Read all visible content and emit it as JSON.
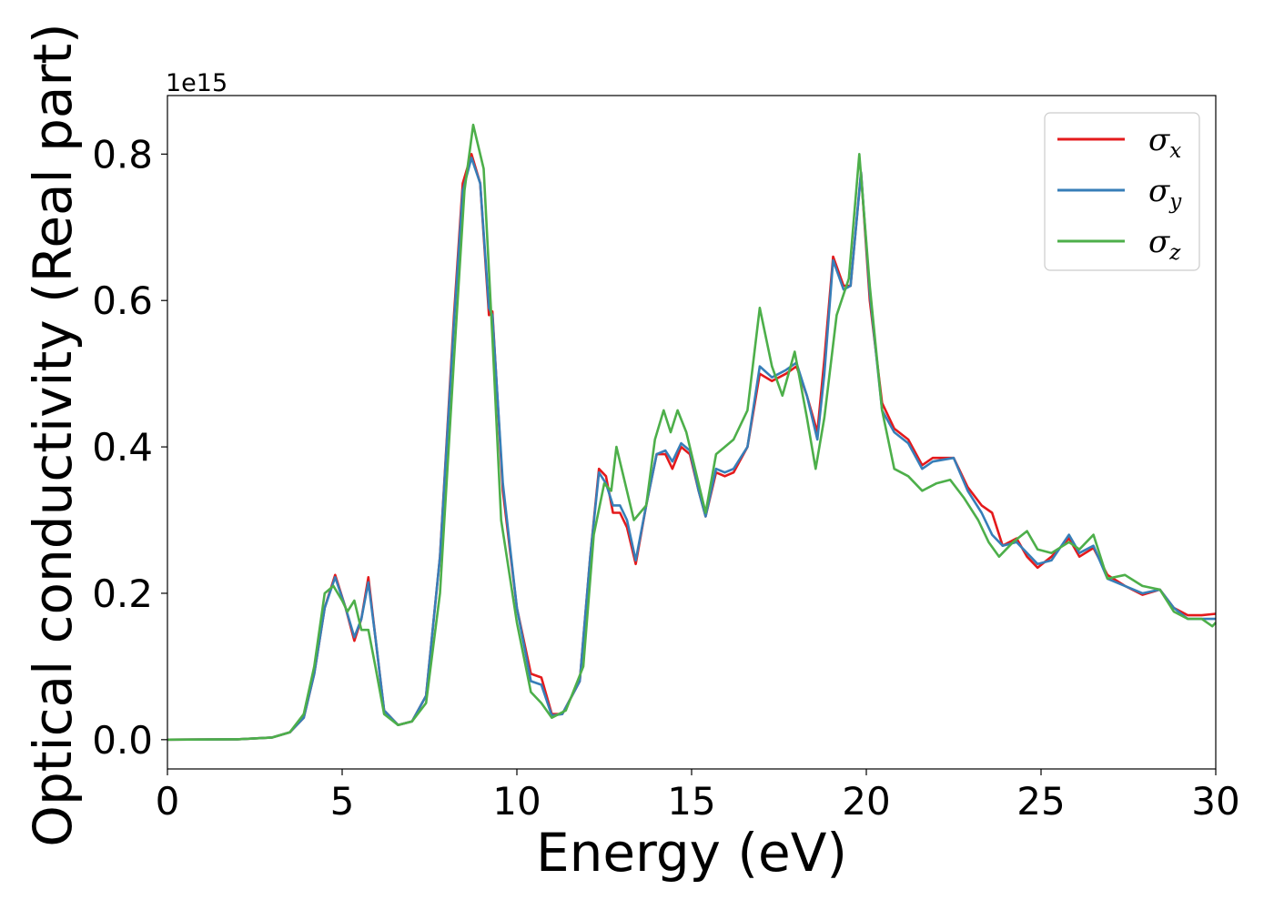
{
  "chart_data": {
    "type": "line",
    "xlabel": "Energy (eV)",
    "ylabel": "Optical conductivity (Real part)",
    "y_offset_label": "1e15",
    "xlim": [
      0,
      30
    ],
    "ylim": [
      -0.04,
      0.88
    ],
    "x_ticks": [
      0,
      5,
      10,
      15,
      20,
      25,
      30
    ],
    "x_tick_labels": [
      "0",
      "5",
      "10",
      "15",
      "20",
      "25",
      "30"
    ],
    "y_ticks": [
      0.0,
      0.2,
      0.4,
      0.6,
      0.8
    ],
    "y_tick_labels": [
      "0.0",
      "0.2",
      "0.4",
      "0.6",
      "0.8"
    ],
    "grid": false,
    "legend_position": "top-right",
    "series": [
      {
        "name": "σx",
        "legend_base": "σ",
        "legend_sub": "x",
        "color": "#e41a1c",
        "points": [
          [
            0,
            0
          ],
          [
            2,
            0.0005
          ],
          [
            3,
            0.003
          ],
          [
            3.5,
            0.01
          ],
          [
            3.9,
            0.03
          ],
          [
            4.2,
            0.09
          ],
          [
            4.5,
            0.18
          ],
          [
            4.8,
            0.225
          ],
          [
            5.1,
            0.18
          ],
          [
            5.35,
            0.135
          ],
          [
            5.55,
            0.165
          ],
          [
            5.75,
            0.222
          ],
          [
            5.95,
            0.14
          ],
          [
            6.2,
            0.04
          ],
          [
            6.6,
            0.02
          ],
          [
            7.0,
            0.025
          ],
          [
            7.4,
            0.06
          ],
          [
            7.8,
            0.25
          ],
          [
            8.2,
            0.58
          ],
          [
            8.45,
            0.76
          ],
          [
            8.7,
            0.8
          ],
          [
            8.95,
            0.76
          ],
          [
            9.2,
            0.58
          ],
          [
            9.3,
            0.585
          ],
          [
            9.6,
            0.34
          ],
          [
            10.0,
            0.18
          ],
          [
            10.4,
            0.09
          ],
          [
            10.7,
            0.085
          ],
          [
            11.0,
            0.035
          ],
          [
            11.3,
            0.035
          ],
          [
            11.8,
            0.08
          ],
          [
            12.1,
            0.25
          ],
          [
            12.35,
            0.37
          ],
          [
            12.55,
            0.36
          ],
          [
            12.75,
            0.31
          ],
          [
            12.95,
            0.31
          ],
          [
            13.15,
            0.29
          ],
          [
            13.4,
            0.24
          ],
          [
            13.7,
            0.32
          ],
          [
            14.0,
            0.39
          ],
          [
            14.25,
            0.39
          ],
          [
            14.45,
            0.37
          ],
          [
            14.7,
            0.4
          ],
          [
            14.95,
            0.39
          ],
          [
            15.2,
            0.34
          ],
          [
            15.4,
            0.305
          ],
          [
            15.7,
            0.365
          ],
          [
            15.95,
            0.36
          ],
          [
            16.2,
            0.365
          ],
          [
            16.6,
            0.4
          ],
          [
            16.95,
            0.5
          ],
          [
            17.3,
            0.49
          ],
          [
            17.7,
            0.5
          ],
          [
            18.0,
            0.51
          ],
          [
            18.3,
            0.47
          ],
          [
            18.6,
            0.42
          ],
          [
            18.8,
            0.52
          ],
          [
            19.05,
            0.66
          ],
          [
            19.35,
            0.62
          ],
          [
            19.55,
            0.62
          ],
          [
            19.85,
            0.775
          ],
          [
            20.1,
            0.6
          ],
          [
            20.45,
            0.46
          ],
          [
            20.8,
            0.425
          ],
          [
            21.2,
            0.41
          ],
          [
            21.6,
            0.375
          ],
          [
            21.9,
            0.385
          ],
          [
            22.5,
            0.385
          ],
          [
            22.9,
            0.345
          ],
          [
            23.3,
            0.32
          ],
          [
            23.6,
            0.31
          ],
          [
            23.9,
            0.265
          ],
          [
            24.3,
            0.275
          ],
          [
            24.6,
            0.25
          ],
          [
            24.9,
            0.235
          ],
          [
            25.3,
            0.25
          ],
          [
            25.8,
            0.275
          ],
          [
            26.1,
            0.25
          ],
          [
            26.5,
            0.262
          ],
          [
            26.9,
            0.225
          ],
          [
            27.4,
            0.21
          ],
          [
            27.9,
            0.198
          ],
          [
            28.4,
            0.205
          ],
          [
            28.8,
            0.18
          ],
          [
            29.2,
            0.17
          ],
          [
            29.6,
            0.17
          ],
          [
            30,
            0.172
          ]
        ]
      },
      {
        "name": "σy",
        "legend_base": "σ",
        "legend_sub": "y",
        "color": "#377eb8",
        "points": [
          [
            0,
            0
          ],
          [
            2,
            0.0005
          ],
          [
            3,
            0.003
          ],
          [
            3.5,
            0.01
          ],
          [
            3.9,
            0.03
          ],
          [
            4.2,
            0.09
          ],
          [
            4.5,
            0.18
          ],
          [
            4.8,
            0.222
          ],
          [
            5.1,
            0.18
          ],
          [
            5.35,
            0.14
          ],
          [
            5.55,
            0.165
          ],
          [
            5.75,
            0.215
          ],
          [
            5.95,
            0.14
          ],
          [
            6.2,
            0.04
          ],
          [
            6.6,
            0.02
          ],
          [
            7.0,
            0.025
          ],
          [
            7.4,
            0.06
          ],
          [
            7.8,
            0.25
          ],
          [
            8.2,
            0.57
          ],
          [
            8.45,
            0.75
          ],
          [
            8.7,
            0.795
          ],
          [
            8.95,
            0.76
          ],
          [
            9.2,
            0.59
          ],
          [
            9.3,
            0.58
          ],
          [
            9.6,
            0.35
          ],
          [
            10.0,
            0.18
          ],
          [
            10.4,
            0.08
          ],
          [
            10.7,
            0.075
          ],
          [
            11.0,
            0.033
          ],
          [
            11.3,
            0.035
          ],
          [
            11.8,
            0.08
          ],
          [
            12.1,
            0.25
          ],
          [
            12.35,
            0.365
          ],
          [
            12.55,
            0.35
          ],
          [
            12.75,
            0.32
          ],
          [
            12.95,
            0.32
          ],
          [
            13.15,
            0.3
          ],
          [
            13.4,
            0.245
          ],
          [
            13.7,
            0.32
          ],
          [
            14.0,
            0.39
          ],
          [
            14.25,
            0.395
          ],
          [
            14.45,
            0.38
          ],
          [
            14.7,
            0.405
          ],
          [
            14.95,
            0.395
          ],
          [
            15.2,
            0.34
          ],
          [
            15.4,
            0.305
          ],
          [
            15.7,
            0.37
          ],
          [
            15.95,
            0.365
          ],
          [
            16.2,
            0.37
          ],
          [
            16.6,
            0.4
          ],
          [
            16.95,
            0.51
          ],
          [
            17.3,
            0.495
          ],
          [
            17.7,
            0.505
          ],
          [
            18.0,
            0.515
          ],
          [
            18.3,
            0.47
          ],
          [
            18.6,
            0.41
          ],
          [
            18.8,
            0.5
          ],
          [
            19.05,
            0.655
          ],
          [
            19.35,
            0.615
          ],
          [
            19.55,
            0.62
          ],
          [
            19.85,
            0.775
          ],
          [
            20.1,
            0.61
          ],
          [
            20.45,
            0.45
          ],
          [
            20.8,
            0.42
          ],
          [
            21.2,
            0.405
          ],
          [
            21.6,
            0.37
          ],
          [
            21.9,
            0.38
          ],
          [
            22.5,
            0.385
          ],
          [
            22.9,
            0.34
          ],
          [
            23.3,
            0.31
          ],
          [
            23.6,
            0.28
          ],
          [
            23.9,
            0.265
          ],
          [
            24.3,
            0.27
          ],
          [
            24.6,
            0.255
          ],
          [
            24.9,
            0.24
          ],
          [
            25.3,
            0.245
          ],
          [
            25.8,
            0.28
          ],
          [
            26.1,
            0.255
          ],
          [
            26.5,
            0.265
          ],
          [
            26.9,
            0.22
          ],
          [
            27.4,
            0.21
          ],
          [
            27.9,
            0.2
          ],
          [
            28.4,
            0.205
          ],
          [
            28.8,
            0.18
          ],
          [
            29.2,
            0.165
          ],
          [
            29.6,
            0.165
          ],
          [
            30,
            0.165
          ]
        ]
      },
      {
        "name": "σz",
        "legend_base": "σ",
        "legend_sub": "z",
        "color": "#4daf4a",
        "points": [
          [
            0,
            0
          ],
          [
            2,
            0.0005
          ],
          [
            3,
            0.003
          ],
          [
            3.5,
            0.01
          ],
          [
            3.9,
            0.035
          ],
          [
            4.2,
            0.1
          ],
          [
            4.5,
            0.2
          ],
          [
            4.75,
            0.21
          ],
          [
            5.0,
            0.19
          ],
          [
            5.15,
            0.175
          ],
          [
            5.35,
            0.19
          ],
          [
            5.55,
            0.15
          ],
          [
            5.75,
            0.15
          ],
          [
            5.95,
            0.1
          ],
          [
            6.2,
            0.035
          ],
          [
            6.6,
            0.02
          ],
          [
            7.0,
            0.025
          ],
          [
            7.4,
            0.05
          ],
          [
            7.8,
            0.2
          ],
          [
            8.2,
            0.52
          ],
          [
            8.5,
            0.75
          ],
          [
            8.75,
            0.84
          ],
          [
            9.05,
            0.78
          ],
          [
            9.3,
            0.55
          ],
          [
            9.55,
            0.3
          ],
          [
            10.0,
            0.16
          ],
          [
            10.4,
            0.065
          ],
          [
            10.7,
            0.05
          ],
          [
            11.0,
            0.03
          ],
          [
            11.4,
            0.04
          ],
          [
            11.9,
            0.1
          ],
          [
            12.2,
            0.28
          ],
          [
            12.5,
            0.35
          ],
          [
            12.7,
            0.34
          ],
          [
            12.85,
            0.4
          ],
          [
            13.05,
            0.36
          ],
          [
            13.35,
            0.3
          ],
          [
            13.7,
            0.32
          ],
          [
            13.95,
            0.41
          ],
          [
            14.2,
            0.45
          ],
          [
            14.4,
            0.42
          ],
          [
            14.6,
            0.45
          ],
          [
            14.85,
            0.42
          ],
          [
            15.4,
            0.31
          ],
          [
            15.7,
            0.39
          ],
          [
            15.95,
            0.4
          ],
          [
            16.2,
            0.41
          ],
          [
            16.6,
            0.45
          ],
          [
            16.95,
            0.59
          ],
          [
            17.3,
            0.51
          ],
          [
            17.6,
            0.47
          ],
          [
            17.95,
            0.53
          ],
          [
            18.3,
            0.44
          ],
          [
            18.55,
            0.37
          ],
          [
            18.8,
            0.44
          ],
          [
            19.15,
            0.58
          ],
          [
            19.5,
            0.63
          ],
          [
            19.8,
            0.8
          ],
          [
            20.1,
            0.62
          ],
          [
            20.45,
            0.45
          ],
          [
            20.8,
            0.37
          ],
          [
            21.2,
            0.36
          ],
          [
            21.6,
            0.34
          ],
          [
            22.0,
            0.35
          ],
          [
            22.4,
            0.355
          ],
          [
            22.8,
            0.33
          ],
          [
            23.2,
            0.3
          ],
          [
            23.5,
            0.27
          ],
          [
            23.8,
            0.25
          ],
          [
            24.2,
            0.27
          ],
          [
            24.6,
            0.285
          ],
          [
            24.9,
            0.26
          ],
          [
            25.3,
            0.255
          ],
          [
            25.8,
            0.27
          ],
          [
            26.1,
            0.26
          ],
          [
            26.5,
            0.28
          ],
          [
            26.9,
            0.22
          ],
          [
            27.4,
            0.225
          ],
          [
            27.9,
            0.21
          ],
          [
            28.4,
            0.205
          ],
          [
            28.8,
            0.175
          ],
          [
            29.2,
            0.165
          ],
          [
            29.6,
            0.165
          ],
          [
            29.9,
            0.155
          ],
          [
            30,
            0.16
          ]
        ]
      }
    ]
  }
}
